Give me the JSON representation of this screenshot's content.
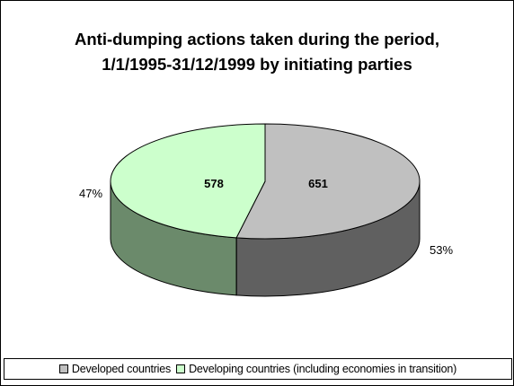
{
  "chart_data": {
    "type": "pie",
    "title_lines": [
      "Anti-dumping actions taken during the period,",
      "1/1/1995-31/12/1999 by initiating parties"
    ],
    "slices": [
      {
        "name": "Developed countries",
        "value": 651,
        "value_label": "651",
        "percent_label": "53%",
        "top_color": "#c0c0c0",
        "side_color": "#606060"
      },
      {
        "name": "Developing countries (including economies in transition)",
        "value": 578,
        "value_label": "578",
        "percent_label": "47%",
        "top_color": "#ccffcc",
        "side_color": "#6b8a6b"
      }
    ],
    "legend_position": "bottom",
    "style": "3d"
  }
}
